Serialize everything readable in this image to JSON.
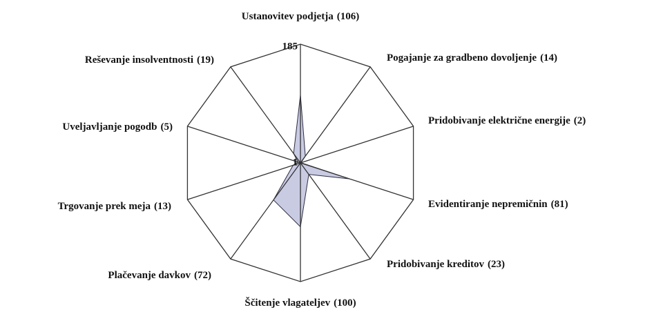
{
  "chart_data": {
    "type": "radar",
    "categories": [
      "Ustanovitev podjetja",
      "Pogajanje za gradbeno dovoljenje",
      "Pridobivanje električne energije",
      "Evidentiranje nepremičnin",
      "Pridobivanje kreditov",
      "Ščitenje vlagateljev",
      "Plačevanje davkov",
      "Trgovanje prek meja",
      "Uveljavljanje pogodb",
      "Reševanje insolventnosti"
    ],
    "values": [
      106,
      14,
      2,
      81,
      23,
      100,
      72,
      13,
      5,
      19
    ],
    "value_labels": [
      "(106)",
      "(14)",
      "(2)",
      "(81)",
      "(23)",
      "(100)",
      "(72)",
      "(13)",
      "(5)",
      "(19)"
    ],
    "color": "#c9cbe3",
    "rlim": [
      1,
      185
    ],
    "rticks": [
      1,
      185
    ]
  }
}
